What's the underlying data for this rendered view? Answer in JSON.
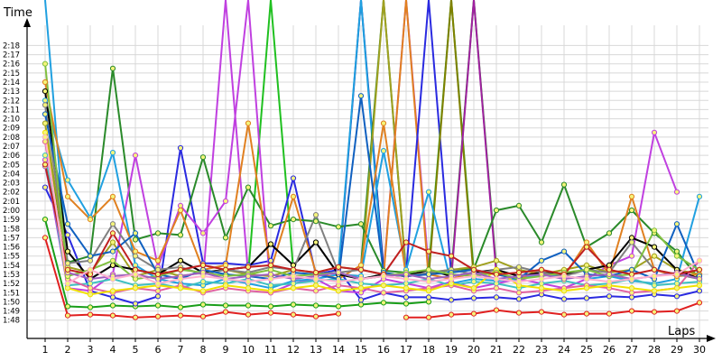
{
  "chart_data": {
    "type": "line",
    "title": "",
    "xlabel": "Laps",
    "ylabel": "Time",
    "grid": true,
    "legend": "none",
    "x": [
      1,
      2,
      3,
      4,
      5,
      6,
      7,
      8,
      9,
      10,
      11,
      12,
      13,
      14,
      15,
      16,
      17,
      18,
      19,
      20,
      21,
      22,
      23,
      24,
      25,
      26,
      27,
      28,
      29,
      30
    ],
    "xlim": [
      0.2,
      30.4
    ],
    "ylim": [
      106,
      141
    ],
    "y_ticks": [
      {
        "v": 108,
        "label": "1:48"
      },
      {
        "v": 109,
        "label": "1:49"
      },
      {
        "v": 110,
        "label": "1:50"
      },
      {
        "v": 111,
        "label": "1:51"
      },
      {
        "v": 112,
        "label": "1:52"
      },
      {
        "v": 113,
        "label": "1:53"
      },
      {
        "v": 114,
        "label": "1:54"
      },
      {
        "v": 115,
        "label": "1:55"
      },
      {
        "v": 116,
        "label": "1:56"
      },
      {
        "v": 117,
        "label": "1:57"
      },
      {
        "v": 118,
        "label": "1:58"
      },
      {
        "v": 119,
        "label": "1:59"
      },
      {
        "v": 120,
        "label": "2:00"
      },
      {
        "v": 121,
        "label": "2:01"
      },
      {
        "v": 122,
        "label": "2:02"
      },
      {
        "v": 123,
        "label": "2:03"
      },
      {
        "v": 124,
        "label": "2:04"
      },
      {
        "v": 125,
        "label": "2:05"
      },
      {
        "v": 126,
        "label": "2:06"
      },
      {
        "v": 127,
        "label": "2:07"
      },
      {
        "v": 128,
        "label": "2:08"
      },
      {
        "v": 129,
        "label": "2:09"
      },
      {
        "v": 130,
        "label": "2:10"
      },
      {
        "v": 131,
        "label": "2:11"
      },
      {
        "v": 132,
        "label": "2:12"
      },
      {
        "v": 133,
        "label": "2:13"
      },
      {
        "v": 134,
        "label": "2:14"
      },
      {
        "v": 135,
        "label": "2:15"
      },
      {
        "v": 136,
        "label": "2:16"
      },
      {
        "v": 137,
        "label": "2:17"
      },
      {
        "v": 138,
        "label": "2:18"
      }
    ],
    "series": [
      {
        "color": "#e02020",
        "values": [
          117.0,
          108.5,
          108.6,
          108.5,
          108.3,
          108.4,
          108.5,
          108.4,
          108.9,
          108.6,
          108.8,
          108.6,
          108.4,
          108.7,
          null,
          null,
          108.3,
          108.3,
          108.6,
          108.7,
          109.1,
          108.8,
          108.9,
          108.6,
          108.7,
          108.7,
          109.0,
          108.9,
          109.0,
          109.9
        ]
      },
      {
        "color": "#1a9e1a",
        "values": [
          119.0,
          109.5,
          109.4,
          109.6,
          109.5,
          109.6,
          109.4,
          109.7,
          109.6,
          109.6,
          109.5,
          109.7,
          109.6,
          109.5,
          109.7,
          109.9,
          109.8,
          110.0,
          null,
          null,
          null,
          null,
          null,
          null,
          null,
          null,
          null,
          null,
          null,
          null
        ]
      },
      {
        "color": "#2a2ae0",
        "values": [
          122.5,
          117.3,
          111.2,
          110.5,
          109.8,
          110.6,
          126.8,
          114.2,
          114.2,
          114.0,
          114.5,
          123.5,
          113.0,
          113.5,
          110.2,
          111.0,
          110.5,
          110.5,
          110.2,
          110.4,
          110.5,
          110.3,
          110.8,
          110.3,
          110.4,
          110.6,
          110.5,
          110.8,
          110.6,
          111.2
        ]
      },
      {
        "color": "#2a8a2a",
        "values": [
          128.0,
          114.3,
          115.0,
          135.5,
          116.8,
          117.5,
          117.3,
          125.8,
          117.0,
          122.5,
          118.3,
          119.0,
          118.8,
          118.2,
          118.5,
          113.4,
          113.2,
          113.0,
          113.5,
          113.6,
          120.0,
          120.5,
          116.5,
          122.8,
          116.0,
          117.5,
          120.0,
          117.5,
          115.5,
          112.5
        ]
      },
      {
        "color": "#c040e0",
        "values": [
          125.5,
          111.5,
          111.2,
          113.0,
          126.0,
          113.8,
          120.5,
          117.5,
          121.0,
          150.0,
          111.0,
          112.0,
          112.5,
          111.2,
          111.0,
          112.5,
          112.0,
          111.5,
          112.2,
          111.5,
          112.0,
          112.5,
          112.0,
          111.5,
          112.5,
          114.0,
          115.0,
          128.5,
          122.0,
          null
        ]
      },
      {
        "color": "#20a0e0",
        "values": [
          132.0,
          123.3,
          119.2,
          126.3,
          114.0,
          112.5,
          112.0,
          111.8,
          112.5,
          112.0,
          111.5,
          112.3,
          112.5,
          113.0,
          112.8,
          126.5,
          113.5,
          122.0,
          112.0,
          112.5,
          112.3,
          112.5,
          113.0,
          112.8,
          112.5,
          112.8,
          112.3,
          112.0,
          112.5,
          121.5
        ]
      },
      {
        "color": "#a0a020",
        "values": [
          129.5,
          113.8,
          113.2,
          116.5,
          112.8,
          113.5,
          112.8,
          113.2,
          113.5,
          113.0,
          112.8,
          113.5,
          113.2,
          113.8,
          113.5,
          113.0,
          112.8,
          113.2,
          113.5,
          113.8,
          114.5,
          113.5,
          113.0,
          113.5,
          114.0,
          113.2,
          113.5,
          115.0,
          113.5,
          113.0
        ]
      },
      {
        "color": "#e08020",
        "values": [
          134.0,
          121.5,
          119.0,
          121.5,
          115.5,
          114.5,
          120.0,
          113.5,
          114.0,
          129.5,
          113.5,
          121.5,
          113.2,
          112.5,
          114.0,
          129.5,
          112.8,
          113.0,
          112.5,
          113.2,
          113.0,
          112.5,
          113.5,
          112.8,
          116.5,
          113.0,
          121.5,
          113.5,
          112.8,
          113.0
        ]
      },
      {
        "color": "#000000",
        "values": [
          133.0,
          115.5,
          112.5,
          114.0,
          113.5,
          113.0,
          114.5,
          113.2,
          113.5,
          113.8,
          116.3,
          114.0,
          116.5,
          113.0,
          112.5,
          113.0,
          112.8,
          113.5,
          112.8,
          113.2,
          113.5,
          112.8,
          113.2,
          113.0,
          113.5,
          114.0,
          117.0,
          116.0,
          113.5,
          112.5
        ]
      },
      {
        "color": "#808080",
        "values": [
          131.5,
          114.2,
          114.5,
          118.5,
          115.0,
          113.5,
          113.8,
          113.0,
          113.5,
          113.2,
          113.8,
          113.5,
          119.5,
          113.2,
          113.5,
          113.0,
          112.8,
          113.2,
          113.5,
          113.0,
          113.5,
          113.8,
          113.2,
          112.8,
          113.5,
          113.2,
          116.5,
          113.5,
          113.0,
          112.5
        ]
      },
      {
        "color": "#40c0c0",
        "values": [
          126.0,
          111.8,
          112.0,
          112.5,
          111.8,
          112.0,
          111.5,
          112.2,
          112.0,
          112.5,
          111.8,
          112.0,
          112.3,
          112.5,
          112.0,
          111.8,
          112.0,
          112.5,
          111.8,
          112.2,
          112.0,
          111.5,
          112.0,
          112.3,
          111.8,
          112.0,
          112.5,
          111.8,
          112.0,
          112.2
        ]
      },
      {
        "color": "#e060a0",
        "values": [
          127.5,
          112.5,
          111.5,
          111.0,
          111.5,
          111.2,
          111.8,
          111.0,
          111.5,
          111.2,
          111.0,
          111.5,
          111.2,
          111.8,
          111.5,
          111.0,
          111.2,
          111.5,
          111.8,
          111.2,
          111.5,
          111.0,
          111.2,
          111.5,
          111.8,
          111.5,
          111.0,
          111.2,
          111.5,
          114.5
        ]
      },
      {
        "color": "#f0e000",
        "values": [
          128.5,
          111.5,
          110.8,
          111.2,
          111.5,
          111.8,
          111.5,
          111.2,
          111.8,
          111.5,
          111.2,
          111.5,
          111.8,
          111.2,
          111.5,
          111.8,
          111.5,
          111.2,
          112.0,
          111.5,
          113.5,
          111.8,
          111.5,
          111.2,
          111.5,
          111.8,
          111.5,
          111.2,
          111.5,
          111.8
        ]
      },
      {
        "color": "#1060c0",
        "values": [
          130.5,
          118.5,
          115.0,
          115.5,
          117.5,
          113.0,
          112.5,
          113.5,
          113.0,
          112.8,
          112.5,
          113.2,
          113.0,
          112.5,
          132.5,
          113.2,
          112.8,
          113.0,
          113.2,
          113.5,
          113.0,
          112.5,
          114.5,
          115.5,
          113.0,
          112.8,
          113.5,
          112.5,
          118.5,
          112.8
        ]
      },
      {
        "color": "#80c040",
        "values": [
          136.0,
          112.8,
          113.5,
          114.5,
          112.5,
          112.8,
          113.5,
          113.2,
          112.8,
          113.0,
          113.5,
          112.8,
          113.0,
          113.2,
          112.5,
          112.8,
          113.2,
          113.5,
          113.0,
          112.8,
          113.2,
          112.5,
          112.8,
          113.2,
          113.5,
          112.8,
          113.0,
          117.8,
          115.0,
          113.5
        ]
      },
      {
        "color": "#a060c0",
        "values": [
          124.8,
          113.2,
          112.5,
          112.8,
          113.0,
          112.5,
          112.8,
          113.2,
          112.5,
          112.8,
          113.0,
          112.5,
          112.8,
          113.2,
          112.5,
          112.8,
          113.0,
          112.5,
          112.8,
          113.2,
          112.5,
          112.8,
          113.0,
          112.5,
          112.8,
          113.0,
          112.5,
          112.8,
          113.2,
          112.5
        ]
      },
      {
        "color": "#c02020",
        "values": [
          125.0,
          113.5,
          113.0,
          117.5,
          113.5,
          113.0,
          113.5,
          114.0,
          113.5,
          113.8,
          114.0,
          113.5,
          113.2,
          113.8,
          113.5,
          113.0,
          116.5,
          115.5,
          115.0,
          113.5,
          113.0,
          113.2,
          113.5,
          113.0,
          116.0,
          113.5,
          113.0,
          113.5,
          113.0,
          113.5
        ]
      },
      {
        "color": "#ffb0d0",
        "values": [
          128.0,
          112.0,
          113.5,
          112.5,
          113.0,
          112.0,
          112.5,
          112.8,
          112.5,
          112.2,
          112.5,
          112.8,
          112.5,
          112.2,
          112.5,
          112.8,
          112.5,
          112.2,
          112.5,
          112.8,
          112.5,
          112.2,
          112.5,
          112.8,
          112.5,
          112.2,
          112.5,
          112.8,
          113.0,
          114.5
        ]
      }
    ],
    "spikes": [
      {
        "x": [
          14,
          15,
          16
        ],
        "values": [
          113.0,
          150.0,
          113.5
        ],
        "color": "#1a1aa0"
      },
      {
        "x": [
          14,
          15,
          16
        ],
        "values": [
          113.5,
          150.0,
          112.5
        ],
        "color": "#20a0e0"
      },
      {
        "x": [
          15,
          16,
          17
        ],
        "values": [
          114.0,
          150.0,
          113.0
        ],
        "color": "#2a8a2a"
      },
      {
        "x": [
          15,
          16,
          17
        ],
        "values": [
          112.5,
          150.0,
          113.2
        ],
        "color": "#a0a020"
      },
      {
        "x": [
          16,
          17,
          18
        ],
        "values": [
          113.0,
          150.0,
          113.5
        ],
        "color": "#c040e0"
      },
      {
        "x": [
          16,
          17,
          18
        ],
        "values": [
          112.8,
          150.0,
          112.5
        ],
        "color": "#e08020"
      },
      {
        "x": [
          17,
          18,
          19
        ],
        "values": [
          113.2,
          150.0,
          113.0
        ],
        "color": "#2a2ae0"
      },
      {
        "x": [
          18,
          19,
          20
        ],
        "values": [
          113.5,
          150.0,
          113.2
        ],
        "color": "#20b020"
      },
      {
        "x": [
          18,
          19,
          20
        ],
        "values": [
          112.8,
          150.0,
          112.5
        ],
        "color": "#808000"
      },
      {
        "x": [
          19,
          20,
          21
        ],
        "values": [
          113.0,
          150.0,
          113.5
        ],
        "color": "#1a9e1a"
      },
      {
        "x": [
          19,
          20,
          21
        ],
        "values": [
          112.5,
          150.0,
          113.0
        ],
        "color": "#a020a0"
      },
      {
        "x": [
          10,
          11,
          12
        ],
        "values": [
          113.0,
          150.0,
          113.5
        ],
        "color": "#20c020"
      },
      {
        "x": [
          8,
          9,
          10
        ],
        "values": [
          112.5,
          150.0,
          113.0
        ],
        "color": "#c040e0"
      },
      {
        "x": [
          1,
          2
        ],
        "values": [
          150.0,
          113.5
        ],
        "color": "#20a0e0"
      }
    ]
  }
}
